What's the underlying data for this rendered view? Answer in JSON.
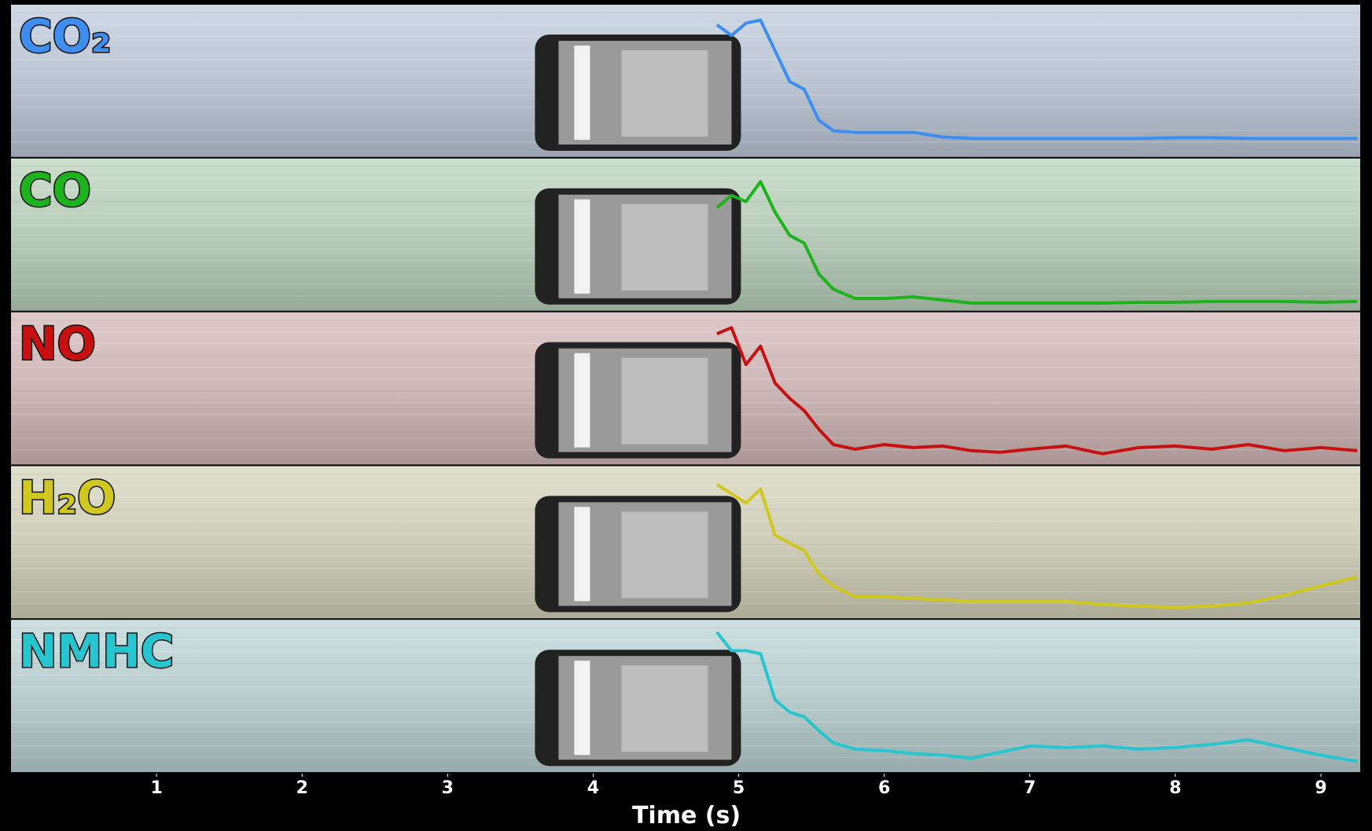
{
  "chart_data": {
    "type": "line",
    "x_label": "Time (s)",
    "xlim": [
      0,
      9.27
    ],
    "xticks": [
      1,
      2,
      3,
      4,
      5,
      6,
      7,
      8,
      9
    ],
    "ylim": [
      0,
      100
    ],
    "x": [
      4.85,
      4.95,
      5.05,
      5.15,
      5.25,
      5.35,
      5.45,
      5.55,
      5.65,
      5.8,
      6.0,
      6.2,
      6.4,
      6.6,
      6.8,
      7.0,
      7.25,
      7.5,
      7.75,
      8.0,
      8.25,
      8.5,
      8.75,
      9.0,
      9.25
    ],
    "series": [
      {
        "name": "CO₂",
        "color": "#3d8ef0",
        "values": [
          87,
          80,
          88,
          90,
          70,
          50,
          45,
          25,
          18,
          17,
          17,
          17,
          14,
          13,
          13,
          13,
          13,
          13,
          13,
          13.5,
          13.5,
          13,
          13,
          13,
          13
        ]
      },
      {
        "name": "CO",
        "color": "#1db31d",
        "values": [
          68,
          76,
          72,
          85,
          65,
          50,
          45,
          25,
          15,
          9,
          9,
          10,
          8,
          6,
          6,
          6,
          6,
          6,
          6.5,
          6.5,
          7,
          7,
          7,
          6.5,
          7
        ]
      },
      {
        "name": "NO",
        "color": "#c81010",
        "values": [
          86,
          90,
          66,
          78,
          54,
          44,
          36,
          24,
          14,
          11,
          14,
          12,
          13,
          10,
          9,
          11,
          13,
          8,
          12,
          13,
          11,
          14,
          10,
          12,
          10
        ]
      },
      {
        "name": "H₂O",
        "color": "#d0c81e",
        "values": [
          88,
          82,
          76,
          85,
          55,
          50,
          45,
          30,
          22,
          15,
          15,
          14,
          13,
          12,
          12,
          12,
          12,
          10,
          9,
          8,
          9,
          11,
          16,
          22,
          28
        ]
      },
      {
        "name": "NMHC",
        "color": "#27c5d0",
        "values": [
          92,
          80,
          80,
          78,
          48,
          40,
          37,
          28,
          20,
          16,
          15,
          13,
          12,
          10,
          14,
          18,
          17,
          18,
          16,
          17,
          19,
          22,
          17,
          12,
          8
        ]
      }
    ]
  }
}
